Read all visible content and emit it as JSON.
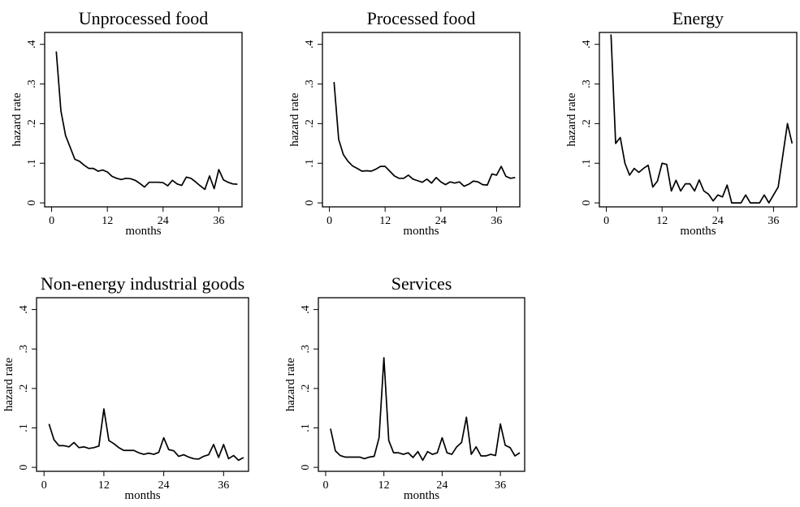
{
  "chart_data": [
    {
      "type": "line",
      "title": "Unprocessed food",
      "xlabel": "months",
      "ylabel": "hazard rate",
      "xlim": [
        -1.5,
        41
      ],
      "ylim": [
        -0.01,
        0.43
      ],
      "xticks": [
        0,
        12,
        24,
        36
      ],
      "yticks": [
        0,
        0.1,
        0.2,
        0.3,
        0.4
      ],
      "ytick_labels": [
        "0",
        ".1",
        ".2",
        ".3",
        ".4"
      ],
      "grid": false,
      "series": [
        {
          "x": [
            1,
            2,
            3,
            4,
            5,
            6,
            7,
            8,
            9,
            10,
            11,
            12,
            13,
            14,
            15,
            16,
            17,
            18,
            19,
            20,
            21,
            22,
            23,
            24,
            25,
            26,
            27,
            28,
            29,
            30,
            31,
            32,
            33,
            34,
            35,
            36,
            37,
            38,
            39,
            40
          ],
          "values": [
            0.382,
            0.232,
            0.17,
            0.14,
            0.11,
            0.105,
            0.095,
            0.087,
            0.087,
            0.08,
            0.083,
            0.078,
            0.067,
            0.062,
            0.059,
            0.062,
            0.061,
            0.057,
            0.049,
            0.04,
            0.052,
            0.052,
            0.052,
            0.051,
            0.043,
            0.057,
            0.048,
            0.044,
            0.065,
            0.062,
            0.053,
            0.043,
            0.034,
            0.068,
            0.036,
            0.084,
            0.058,
            0.052,
            0.048,
            0.047
          ]
        }
      ]
    },
    {
      "type": "line",
      "title": "Processed food",
      "xlabel": "months",
      "ylabel": "hazard rate",
      "xlim": [
        -1.5,
        41
      ],
      "ylim": [
        -0.01,
        0.43
      ],
      "xticks": [
        0,
        12,
        24,
        36
      ],
      "yticks": [
        0,
        0.1,
        0.2,
        0.3,
        0.4
      ],
      "ytick_labels": [
        "0",
        ".1",
        ".2",
        ".3",
        ".4"
      ],
      "grid": false,
      "series": [
        {
          "x": [
            1,
            2,
            3,
            4,
            5,
            6,
            7,
            8,
            9,
            10,
            11,
            12,
            13,
            14,
            15,
            16,
            17,
            18,
            19,
            20,
            21,
            22,
            23,
            24,
            25,
            26,
            27,
            28,
            29,
            30,
            31,
            32,
            33,
            34,
            35,
            36,
            37,
            38,
            39,
            40
          ],
          "values": [
            0.305,
            0.16,
            0.122,
            0.105,
            0.093,
            0.087,
            0.08,
            0.081,
            0.08,
            0.085,
            0.092,
            0.092,
            0.08,
            0.068,
            0.062,
            0.062,
            0.07,
            0.06,
            0.056,
            0.052,
            0.06,
            0.05,
            0.064,
            0.053,
            0.046,
            0.053,
            0.05,
            0.053,
            0.042,
            0.047,
            0.055,
            0.053,
            0.046,
            0.045,
            0.073,
            0.07,
            0.092,
            0.067,
            0.062,
            0.064
          ]
        }
      ]
    },
    {
      "type": "line",
      "title": "Energy",
      "xlabel": "months",
      "ylabel": "hazard rate",
      "xlim": [
        -1.5,
        41
      ],
      "ylim": [
        -0.01,
        0.43
      ],
      "xticks": [
        0,
        12,
        24,
        36
      ],
      "yticks": [
        0,
        0.1,
        0.2,
        0.3,
        0.4
      ],
      "ytick_labels": [
        "0",
        ".1",
        ".2",
        ".3",
        ".4"
      ],
      "grid": false,
      "series": [
        {
          "x": [
            1,
            2,
            3,
            4,
            5,
            6,
            7,
            8,
            9,
            10,
            11,
            12,
            13,
            14,
            15,
            16,
            17,
            18,
            19,
            20,
            21,
            22,
            23,
            24,
            25,
            26,
            27,
            28,
            29,
            30,
            31,
            32,
            33,
            34,
            35,
            36,
            37,
            38,
            39,
            40
          ],
          "values": [
            0.425,
            0.15,
            0.165,
            0.1,
            0.07,
            0.087,
            0.077,
            0.087,
            0.095,
            0.04,
            0.055,
            0.1,
            0.097,
            0.03,
            0.057,
            0.03,
            0.048,
            0.048,
            0.03,
            0.058,
            0.03,
            0.022,
            0.005,
            0.02,
            0.015,
            0.045,
            0.0,
            0.0,
            0.0,
            0.02,
            0.0,
            0.0,
            0.0,
            0.02,
            0.0,
            0.02,
            0.04,
            0.12,
            0.2,
            0.15
          ]
        }
      ]
    },
    {
      "type": "line",
      "title": "Non-energy industrial goods",
      "xlabel": "months",
      "ylabel": "hazard rate",
      "xlim": [
        -1.5,
        41
      ],
      "ylim": [
        -0.01,
        0.43
      ],
      "xticks": [
        0,
        12,
        24,
        36
      ],
      "yticks": [
        0,
        0.1,
        0.2,
        0.3,
        0.4
      ],
      "ytick_labels": [
        "0",
        ".1",
        ".2",
        ".3",
        ".4"
      ],
      "grid": false,
      "series": [
        {
          "x": [
            1,
            2,
            3,
            4,
            5,
            6,
            7,
            8,
            9,
            10,
            11,
            12,
            13,
            14,
            15,
            16,
            17,
            18,
            19,
            20,
            21,
            22,
            23,
            24,
            25,
            26,
            27,
            28,
            29,
            30,
            31,
            32,
            33,
            34,
            35,
            36,
            37,
            38,
            39,
            40
          ],
          "values": [
            0.11,
            0.07,
            0.055,
            0.055,
            0.052,
            0.063,
            0.05,
            0.052,
            0.048,
            0.05,
            0.054,
            0.148,
            0.068,
            0.06,
            0.05,
            0.043,
            0.043,
            0.043,
            0.037,
            0.033,
            0.036,
            0.033,
            0.038,
            0.075,
            0.045,
            0.042,
            0.028,
            0.032,
            0.026,
            0.022,
            0.021,
            0.028,
            0.032,
            0.058,
            0.025,
            0.058,
            0.022,
            0.03,
            0.018,
            0.025
          ]
        }
      ]
    },
    {
      "type": "line",
      "title": "Services",
      "xlabel": "months",
      "ylabel": "hazard rate",
      "xlim": [
        -1.5,
        41
      ],
      "ylim": [
        -0.01,
        0.43
      ],
      "xticks": [
        0,
        12,
        24,
        36
      ],
      "yticks": [
        0,
        0.1,
        0.2,
        0.3,
        0.4
      ],
      "ytick_labels": [
        "0",
        ".1",
        ".2",
        ".3",
        ".4"
      ],
      "grid": false,
      "series": [
        {
          "x": [
            1,
            2,
            3,
            4,
            5,
            6,
            7,
            8,
            9,
            10,
            11,
            12,
            13,
            14,
            15,
            16,
            17,
            18,
            19,
            20,
            21,
            22,
            23,
            24,
            25,
            26,
            27,
            28,
            29,
            30,
            31,
            32,
            33,
            34,
            35,
            36,
            37,
            38,
            39,
            40
          ],
          "values": [
            0.098,
            0.042,
            0.03,
            0.026,
            0.026,
            0.026,
            0.026,
            0.022,
            0.026,
            0.028,
            0.075,
            0.278,
            0.068,
            0.037,
            0.037,
            0.033,
            0.037,
            0.025,
            0.04,
            0.018,
            0.04,
            0.033,
            0.037,
            0.075,
            0.037,
            0.033,
            0.052,
            0.063,
            0.127,
            0.033,
            0.052,
            0.029,
            0.029,
            0.033,
            0.03,
            0.11,
            0.056,
            0.05,
            0.029,
            0.037
          ]
        }
      ]
    }
  ]
}
